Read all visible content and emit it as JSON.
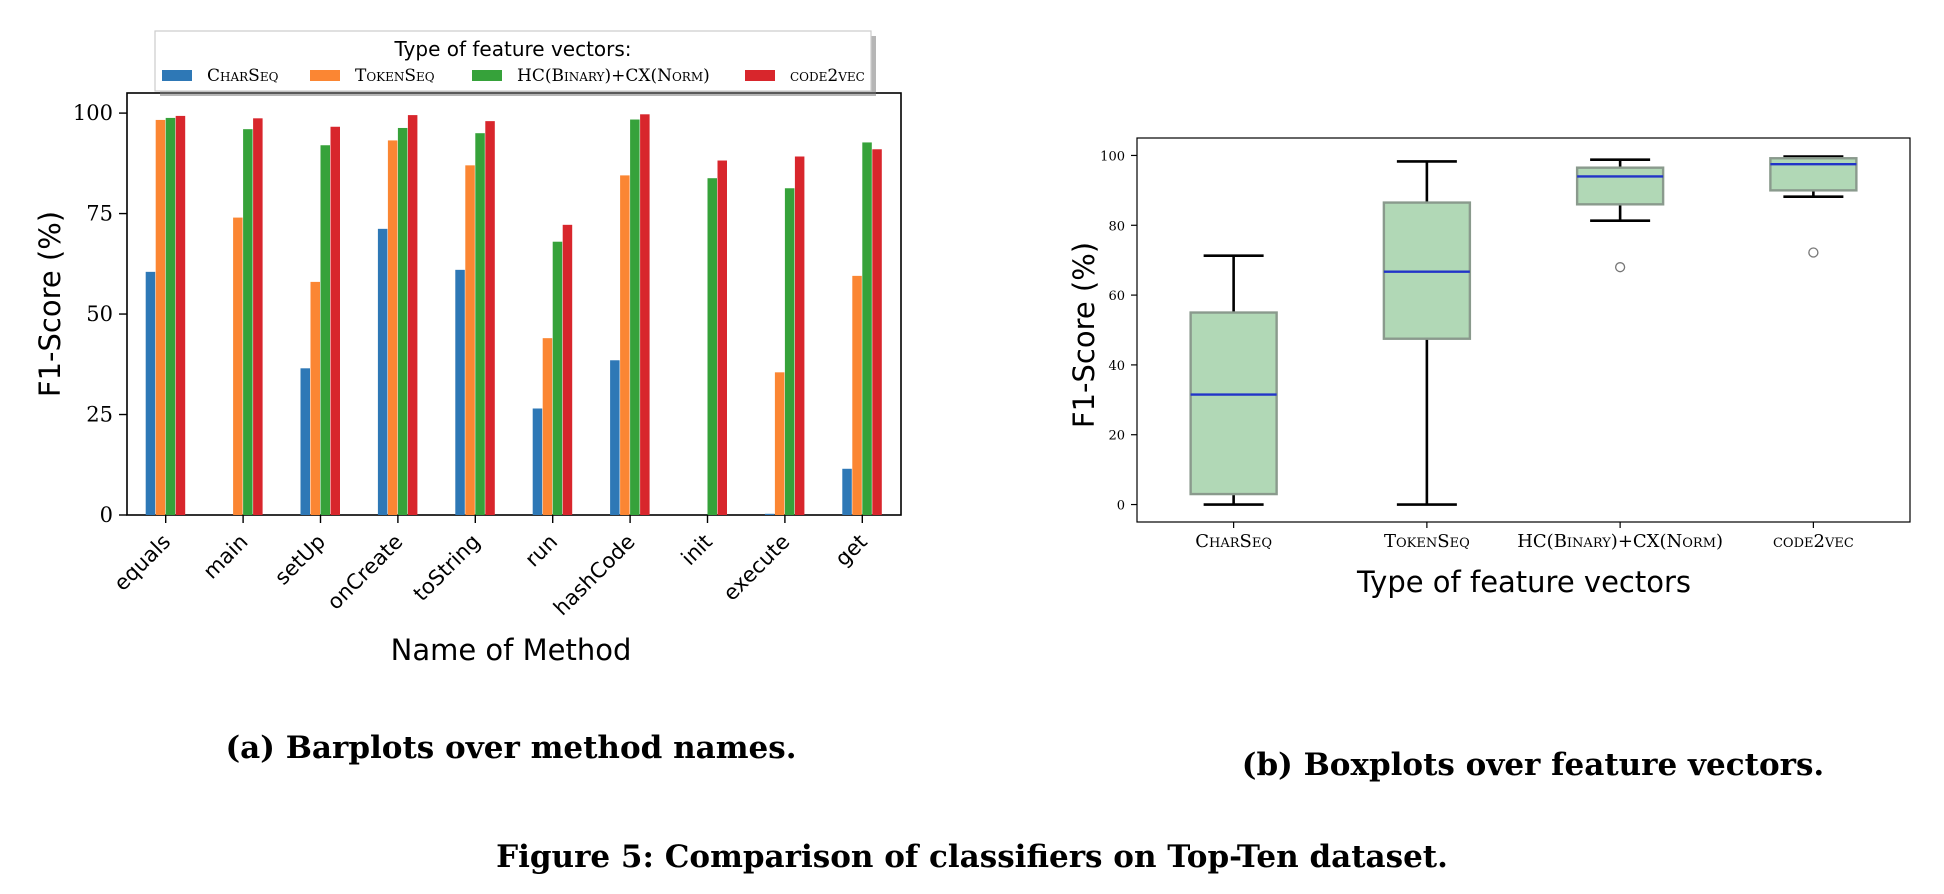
{
  "figure_caption": "Figure 5: Comparison of classifiers on Top-Ten dataset.",
  "chart_data": [
    {
      "type": "bar",
      "caption": "(a) Barplots over method names.",
      "legend_title": "Type of feature vectors:",
      "legend_placement": "top",
      "xlabel": "Name of Method",
      "ylabel": "F1-Score (%)",
      "ylim": [
        0,
        105
      ],
      "yticks": [
        0,
        25,
        50,
        75,
        100
      ],
      "categories": [
        "equals",
        "main",
        "setUp",
        "onCreate",
        "toString",
        "run",
        "hashCode",
        "init",
        "execute",
        "get"
      ],
      "series": [
        {
          "name": "CharSeq",
          "color": "#2e78b6",
          "values": [
            60.5,
            0,
            36.5,
            71.2,
            61,
            26.5,
            38.5,
            0,
            0.3,
            11.5
          ]
        },
        {
          "name": "TokenSeq",
          "color": "#fb8633",
          "values": [
            98.3,
            74,
            58,
            93.2,
            87,
            44,
            84.5,
            0,
            35.5,
            59.5
          ]
        },
        {
          "name": "HC(Binary)+CX(Norm)",
          "color": "#36a23a",
          "values": [
            98.8,
            96,
            92,
            96.3,
            95,
            68,
            98.4,
            83.8,
            81.3,
            92.7
          ]
        },
        {
          "name": "code2vec",
          "color": "#d8262c",
          "values": [
            99.3,
            98.7,
            96.6,
            99.5,
            98,
            72.2,
            99.7,
            88.2,
            89.2,
            91
          ]
        }
      ],
      "grid": false
    },
    {
      "type": "box",
      "caption": "(b) Boxplots over feature vectors.",
      "xlabel": "Type of feature vectors",
      "ylabel": "F1-Score (%)",
      "ylim": [
        -5,
        105
      ],
      "yticks": [
        0,
        20,
        40,
        60,
        80,
        100
      ],
      "box_color": "#b1d8b6",
      "median_color": "#2234c8",
      "categories": [
        "CharSeq",
        "TokenSeq",
        "HC(Binary)+CX(Norm)",
        "code2vec"
      ],
      "boxes": [
        {
          "label": "CharSeq",
          "whisker_low": 0,
          "q1": 3,
          "median": 31.5,
          "q3": 55,
          "whisker_high": 71.3,
          "outliers": []
        },
        {
          "label": "TokenSeq",
          "whisker_low": 0,
          "q1": 47.5,
          "median": 66.7,
          "q3": 86.5,
          "whisker_high": 98.3,
          "outliers": []
        },
        {
          "label": "HC(Binary)+CX(Norm)",
          "whisker_low": 81.3,
          "q1": 86,
          "median": 94,
          "q3": 96.5,
          "whisker_high": 98.8,
          "outliers": [
            68
          ]
        },
        {
          "label": "code2vec",
          "whisker_low": 88.2,
          "q1": 90,
          "median": 97.5,
          "q3": 99.2,
          "whisker_high": 99.7,
          "outliers": [
            72.2
          ]
        }
      ],
      "grid": false
    }
  ]
}
